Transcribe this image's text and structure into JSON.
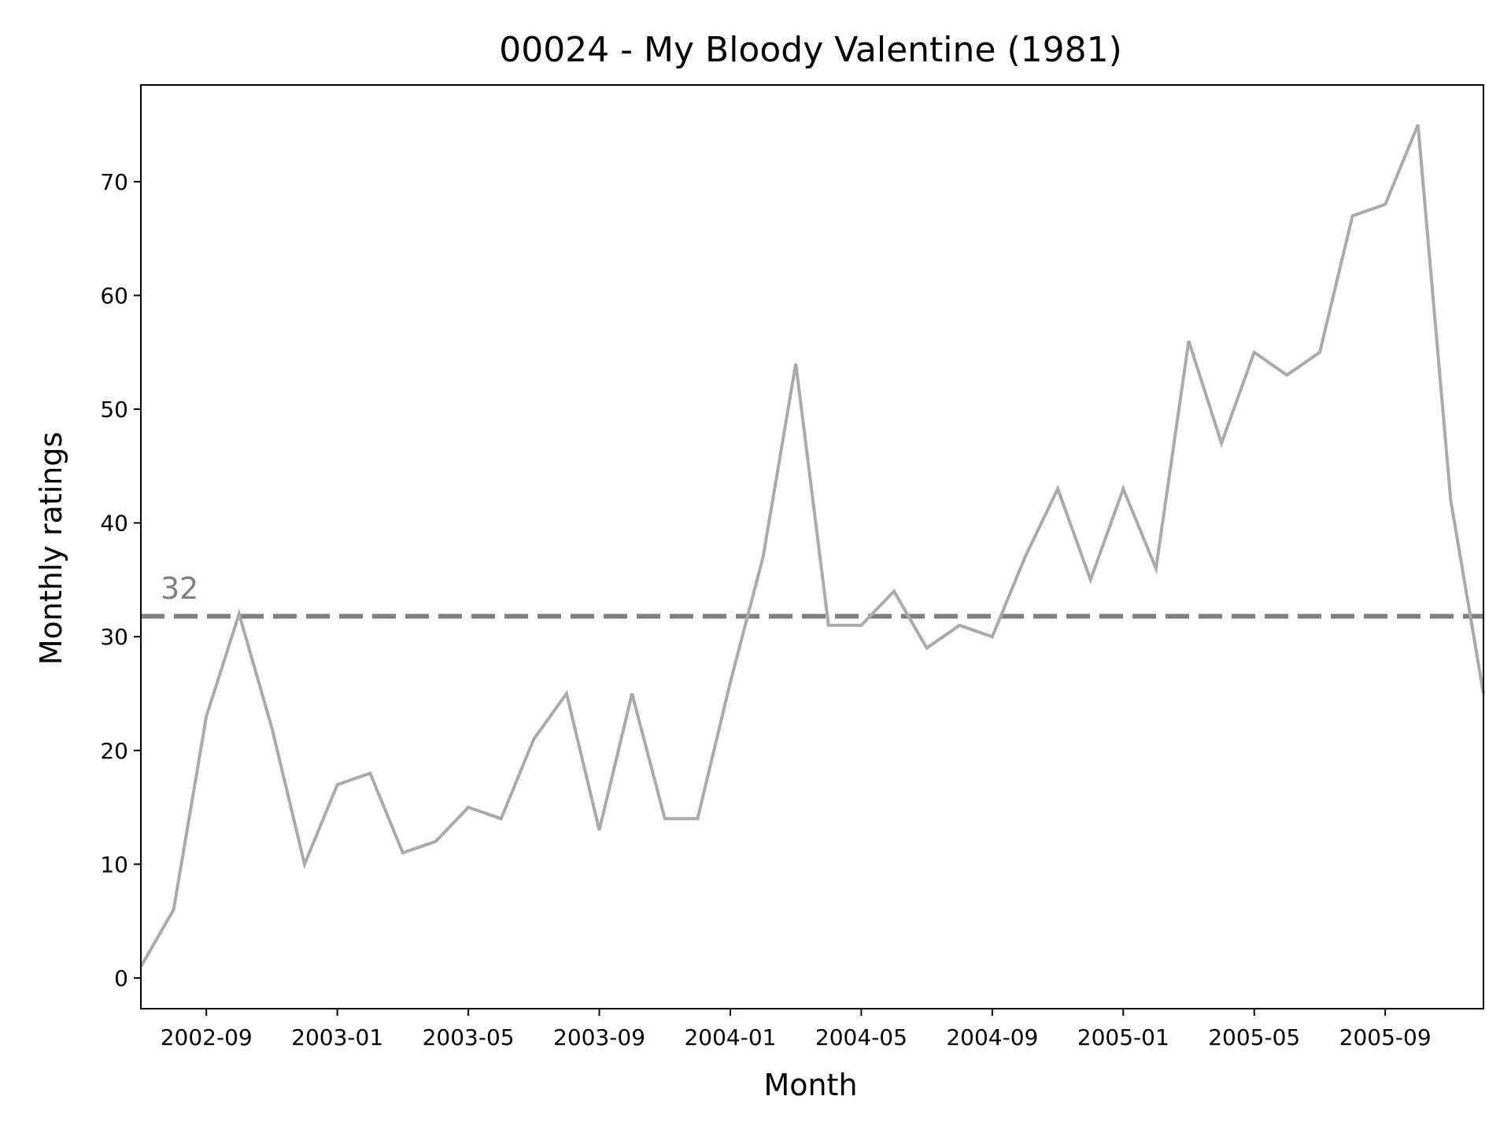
{
  "chart_data": {
    "type": "line",
    "title": "00024 - My Bloody Valentine (1981)",
    "xlabel": "Month",
    "ylabel": "Monthly ratings",
    "x_tick_labels": [
      "2002-09",
      "2003-01",
      "2003-05",
      "2003-09",
      "2004-01",
      "2004-05",
      "2004-09",
      "2005-01",
      "2005-05",
      "2005-09"
    ],
    "y_ticks": [
      0,
      10,
      20,
      30,
      40,
      50,
      60,
      70
    ],
    "ylim": [
      -2.7,
      78.5
    ],
    "xlim": [
      "2002-07",
      "2005-12"
    ],
    "grid": false,
    "legend": "none",
    "series": [
      {
        "color": "#aaaaaa",
        "x": [
          "2002-07",
          "2002-08",
          "2002-09",
          "2002-10",
          "2002-11",
          "2002-12",
          "2003-01",
          "2003-02",
          "2003-03",
          "2003-04",
          "2003-05",
          "2003-06",
          "2003-07",
          "2003-08",
          "2003-09",
          "2003-10",
          "2003-11",
          "2003-12",
          "2004-01",
          "2004-02",
          "2004-03",
          "2004-04",
          "2004-05",
          "2004-06",
          "2004-07",
          "2004-08",
          "2004-09",
          "2004-10",
          "2004-11",
          "2004-12",
          "2005-01",
          "2005-02",
          "2005-03",
          "2005-04",
          "2005-05",
          "2005-06",
          "2005-07",
          "2005-08",
          "2005-09",
          "2005-10",
          "2005-11",
          "2005-12"
        ],
        "values": [
          1,
          6,
          23,
          32,
          22,
          10,
          17,
          18,
          11,
          12,
          15,
          14,
          21,
          25,
          13,
          25,
          14,
          14,
          26,
          37,
          54,
          31,
          31,
          34,
          29,
          31,
          30,
          37,
          43,
          35,
          43,
          36,
          56,
          47,
          55,
          53,
          55,
          67,
          68,
          75,
          42,
          25
        ]
      }
    ],
    "reference_line": {
      "value": 31.8,
      "label": "32",
      "color": "#808080",
      "style": "dashed"
    }
  }
}
